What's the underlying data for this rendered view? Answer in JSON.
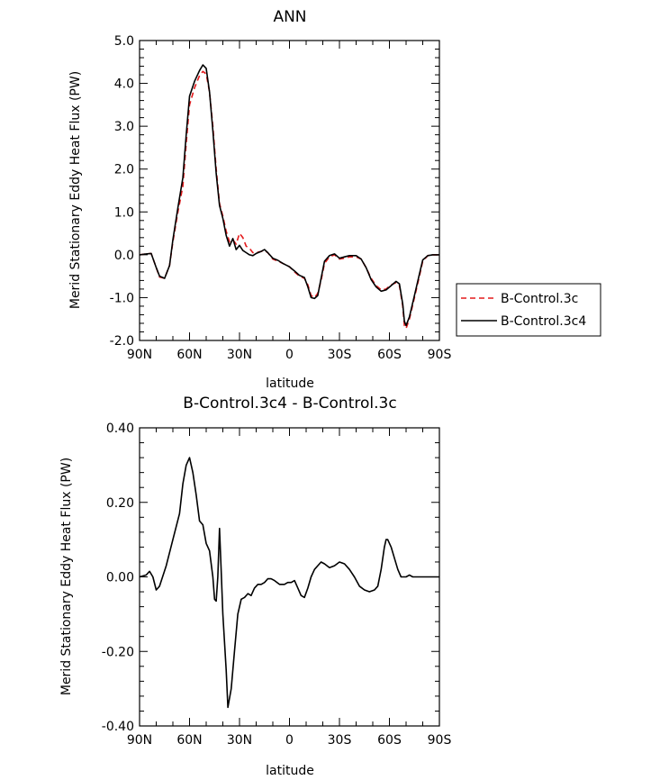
{
  "chart_data": [
    {
      "type": "line",
      "title": "ANN",
      "xlabel": "latitude",
      "ylabel": "Merid Stationary Eddy Heat Flux (PW)",
      "xlim": [
        90,
        -90
      ],
      "ylim": [
        -2.0,
        5.0
      ],
      "x_ticks": [
        90,
        60,
        30,
        0,
        -30,
        -60,
        -90
      ],
      "x_tick_labels": [
        "90N",
        "60N",
        "30N",
        "0",
        "30S",
        "60S",
        "90S"
      ],
      "y_ticks": [
        -2.0,
        -1.0,
        0.0,
        1.0,
        2.0,
        3.0,
        4.0,
        5.0
      ],
      "y_tick_labels": [
        "-2.0",
        "-1.0",
        "0.0",
        "1.0",
        "2.0",
        "3.0",
        "4.0",
        "5.0"
      ],
      "grid": false,
      "legend": "outside-right",
      "series": [
        {
          "name": "B-Control.3c",
          "color": "#e41a1c",
          "dash": "dashed",
          "points": [
            [
              90,
              0.0
            ],
            [
              86,
              0.02
            ],
            [
              83,
              0.03
            ],
            [
              80,
              -0.3
            ],
            [
              78,
              -0.52
            ],
            [
              75,
              -0.55
            ],
            [
              72,
              -0.25
            ],
            [
              70,
              0.3
            ],
            [
              67,
              1.0
            ],
            [
              64,
              1.6
            ],
            [
              62,
              2.6
            ],
            [
              60,
              3.5
            ],
            [
              57,
              3.9
            ],
            [
              54,
              4.18
            ],
            [
              52,
              4.28
            ],
            [
              50,
              4.22
            ],
            [
              48,
              3.8
            ],
            [
              46,
              3.0
            ],
            [
              44,
              2.0
            ],
            [
              42,
              1.2
            ],
            [
              40,
              0.9
            ],
            [
              38,
              0.55
            ],
            [
              36,
              0.3
            ],
            [
              34,
              0.35
            ],
            [
              32,
              0.25
            ],
            [
              30,
              0.5
            ],
            [
              28,
              0.4
            ],
            [
              26,
              0.2
            ],
            [
              24,
              0.15
            ],
            [
              22,
              0.05
            ],
            [
              20,
              0.05
            ],
            [
              17,
              0.08
            ],
            [
              15,
              0.1
            ],
            [
              13,
              0.05
            ],
            [
              10,
              -0.1
            ],
            [
              7,
              -0.15
            ],
            [
              4,
              -0.2
            ],
            [
              0,
              -0.28
            ],
            [
              -3,
              -0.4
            ],
            [
              -6,
              -0.5
            ],
            [
              -9,
              -0.55
            ],
            [
              -11,
              -0.7
            ],
            [
              -13,
              -0.95
            ],
            [
              -15,
              -1.0
            ],
            [
              -17,
              -0.9
            ],
            [
              -19,
              -0.6
            ],
            [
              -21,
              -0.2
            ],
            [
              -24,
              -0.05
            ],
            [
              -27,
              0.0
            ],
            [
              -30,
              -0.1
            ],
            [
              -33,
              -0.08
            ],
            [
              -36,
              -0.05
            ],
            [
              -40,
              -0.05
            ],
            [
              -43,
              -0.1
            ],
            [
              -46,
              -0.3
            ],
            [
              -49,
              -0.55
            ],
            [
              -52,
              -0.72
            ],
            [
              -55,
              -0.82
            ],
            [
              -58,
              -0.8
            ],
            [
              -61,
              -0.7
            ],
            [
              -64,
              -0.65
            ],
            [
              -66,
              -0.72
            ],
            [
              -68,
              -1.2
            ],
            [
              -69,
              -1.65
            ],
            [
              -70,
              -1.72
            ],
            [
              -72,
              -1.5
            ],
            [
              -75,
              -1.0
            ],
            [
              -78,
              -0.5
            ],
            [
              -80,
              -0.15
            ],
            [
              -83,
              -0.02
            ],
            [
              -86,
              0.0
            ],
            [
              -90,
              0.0
            ]
          ]
        },
        {
          "name": "B-Control.3c4",
          "color": "#000000",
          "dash": "solid",
          "points": [
            [
              90,
              0.0
            ],
            [
              86,
              0.02
            ],
            [
              83,
              0.03
            ],
            [
              80,
              -0.3
            ],
            [
              78,
              -0.5
            ],
            [
              75,
              -0.55
            ],
            [
              72,
              -0.25
            ],
            [
              70,
              0.35
            ],
            [
              67,
              1.1
            ],
            [
              64,
              1.8
            ],
            [
              62,
              2.8
            ],
            [
              60,
              3.7
            ],
            [
              57,
              4.05
            ],
            [
              54,
              4.3
            ],
            [
              52,
              4.43
            ],
            [
              50,
              4.35
            ],
            [
              48,
              3.8
            ],
            [
              46,
              2.9
            ],
            [
              44,
              1.9
            ],
            [
              42,
              1.15
            ],
            [
              40,
              0.85
            ],
            [
              38,
              0.45
            ],
            [
              36,
              0.2
            ],
            [
              34,
              0.38
            ],
            [
              32,
              0.12
            ],
            [
              30,
              0.22
            ],
            [
              28,
              0.1
            ],
            [
              26,
              0.05
            ],
            [
              24,
              0.0
            ],
            [
              22,
              -0.02
            ],
            [
              20,
              0.03
            ],
            [
              17,
              0.08
            ],
            [
              15,
              0.12
            ],
            [
              13,
              0.05
            ],
            [
              10,
              -0.08
            ],
            [
              7,
              -0.13
            ],
            [
              4,
              -0.2
            ],
            [
              0,
              -0.28
            ],
            [
              -3,
              -0.38
            ],
            [
              -6,
              -0.48
            ],
            [
              -9,
              -0.53
            ],
            [
              -11,
              -0.75
            ],
            [
              -13,
              -1.0
            ],
            [
              -15,
              -1.02
            ],
            [
              -17,
              -0.95
            ],
            [
              -19,
              -0.55
            ],
            [
              -21,
              -0.15
            ],
            [
              -24,
              -0.02
            ],
            [
              -27,
              0.02
            ],
            [
              -30,
              -0.08
            ],
            [
              -33,
              -0.05
            ],
            [
              -36,
              -0.02
            ],
            [
              -40,
              -0.02
            ],
            [
              -43,
              -0.1
            ],
            [
              -46,
              -0.3
            ],
            [
              -49,
              -0.58
            ],
            [
              -52,
              -0.75
            ],
            [
              -55,
              -0.85
            ],
            [
              -58,
              -0.82
            ],
            [
              -61,
              -0.72
            ],
            [
              -64,
              -0.62
            ],
            [
              -66,
              -0.68
            ],
            [
              -68,
              -1.15
            ],
            [
              -69,
              -1.55
            ],
            [
              -70,
              -1.65
            ],
            [
              -72,
              -1.45
            ],
            [
              -75,
              -0.95
            ],
            [
              -78,
              -0.45
            ],
            [
              -80,
              -0.12
            ],
            [
              -83,
              -0.02
            ],
            [
              -86,
              0.0
            ],
            [
              -90,
              0.0
            ]
          ]
        }
      ]
    },
    {
      "type": "line",
      "title": "B-Control.3c4 - B-Control.3c",
      "xlabel": "latitude",
      "ylabel": "Merid Stationary Eddy Heat Flux (PW)",
      "xlim": [
        90,
        -90
      ],
      "ylim": [
        -0.4,
        0.4
      ],
      "x_ticks": [
        90,
        60,
        30,
        0,
        -30,
        -60,
        -90
      ],
      "x_tick_labels": [
        "90N",
        "60N",
        "30N",
        "0",
        "30S",
        "60S",
        "90S"
      ],
      "y_ticks": [
        -0.4,
        -0.2,
        0.0,
        0.2,
        0.4
      ],
      "y_tick_labels": [
        "-0.40",
        "-0.20",
        "0.00",
        "0.20",
        "0.40"
      ],
      "grid": false,
      "series": [
        {
          "color": "#000000",
          "dash": "solid",
          "points": [
            [
              90,
              0.0
            ],
            [
              86,
              0.005
            ],
            [
              84,
              0.015
            ],
            [
              82,
              0.0
            ],
            [
              80,
              -0.035
            ],
            [
              78,
              -0.025
            ],
            [
              74,
              0.03
            ],
            [
              70,
              0.1
            ],
            [
              66,
              0.17
            ],
            [
              64,
              0.25
            ],
            [
              62,
              0.3
            ],
            [
              60,
              0.32
            ],
            [
              58,
              0.28
            ],
            [
              56,
              0.22
            ],
            [
              54,
              0.15
            ],
            [
              52,
              0.14
            ],
            [
              50,
              0.09
            ],
            [
              48,
              0.07
            ],
            [
              46,
              0.0
            ],
            [
              45,
              -0.06
            ],
            [
              44,
              -0.065
            ],
            [
              43,
              0.0
            ],
            [
              42,
              0.13
            ],
            [
              41,
              0.02
            ],
            [
              40,
              -0.1
            ],
            [
              38,
              -0.25
            ],
            [
              37,
              -0.35
            ],
            [
              35,
              -0.3
            ],
            [
              33,
              -0.2
            ],
            [
              31,
              -0.1
            ],
            [
              29,
              -0.06
            ],
            [
              27,
              -0.055
            ],
            [
              25,
              -0.045
            ],
            [
              23,
              -0.05
            ],
            [
              21,
              -0.03
            ],
            [
              19,
              -0.02
            ],
            [
              17,
              -0.02
            ],
            [
              15,
              -0.015
            ],
            [
              13,
              -0.005
            ],
            [
              11,
              -0.005
            ],
            [
              9,
              -0.01
            ],
            [
              6,
              -0.02
            ],
            [
              3,
              -0.02
            ],
            [
              1,
              -0.015
            ],
            [
              -1,
              -0.015
            ],
            [
              -3,
              -0.01
            ],
            [
              -5,
              -0.03
            ],
            [
              -7,
              -0.05
            ],
            [
              -9,
              -0.055
            ],
            [
              -11,
              -0.03
            ],
            [
              -13,
              0.0
            ],
            [
              -15,
              0.02
            ],
            [
              -17,
              0.03
            ],
            [
              -19,
              0.04
            ],
            [
              -21,
              0.035
            ],
            [
              -24,
              0.025
            ],
            [
              -27,
              0.03
            ],
            [
              -30,
              0.04
            ],
            [
              -33,
              0.035
            ],
            [
              -36,
              0.02
            ],
            [
              -39,
              0.0
            ],
            [
              -42,
              -0.025
            ],
            [
              -45,
              -0.035
            ],
            [
              -48,
              -0.04
            ],
            [
              -51,
              -0.035
            ],
            [
              -53,
              -0.025
            ],
            [
              -55,
              0.02
            ],
            [
              -57,
              0.08
            ],
            [
              -58,
              0.1
            ],
            [
              -59,
              0.1
            ],
            [
              -61,
              0.08
            ],
            [
              -63,
              0.05
            ],
            [
              -65,
              0.02
            ],
            [
              -67,
              0.0
            ],
            [
              -70,
              0.0
            ],
            [
              -72,
              0.005
            ],
            [
              -74,
              0.0
            ],
            [
              -76,
              0.0
            ],
            [
              -80,
              0.0
            ],
            [
              -86,
              0.0
            ],
            [
              -90,
              0.0
            ]
          ]
        }
      ]
    }
  ]
}
